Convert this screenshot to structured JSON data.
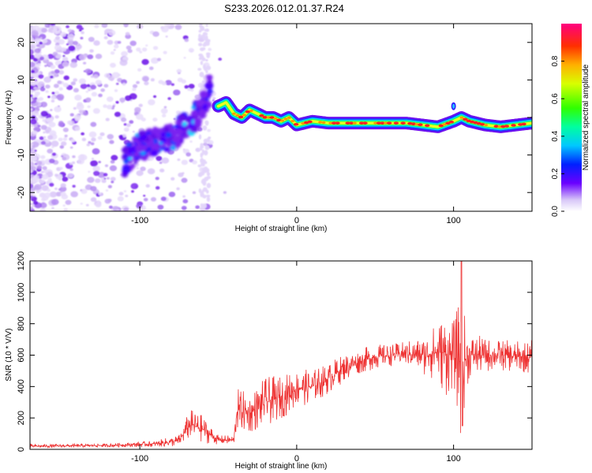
{
  "title": "S233.2026.012.01.37.R24",
  "chart_data": [
    {
      "type": "heatmap",
      "name": "spectrogram",
      "xlabel": "Height of straight line (km)",
      "ylabel": "Frequency (Hz)",
      "xlim": [
        -170,
        150
      ],
      "ylim": [
        -25,
        25
      ],
      "xticks": [
        -100,
        0,
        100
      ],
      "yticks": [
        -20,
        -10,
        0,
        10,
        20
      ],
      "colorbar": {
        "label": "Normalized spectral amplitude",
        "range": [
          0,
          1
        ],
        "ticks": [
          "0.0",
          "0.2",
          "0.4",
          "0.6",
          "0.8"
        ],
        "tick_values": [
          0.0,
          0.2,
          0.4,
          0.6,
          0.8
        ]
      },
      "ridge": {
        "x": [
          -50,
          -45,
          -40,
          -35,
          -30,
          -25,
          -20,
          -15,
          -10,
          -5,
          0,
          10,
          20,
          30,
          40,
          50,
          60,
          70,
          80,
          90,
          100,
          105,
          110,
          120,
          130,
          140,
          150
        ],
        "y": [
          3,
          4,
          1,
          0,
          2,
          1,
          0,
          0,
          -1,
          0,
          -2,
          -1,
          -1.5,
          -1.5,
          -1.5,
          -1.5,
          -1.5,
          -1.5,
          -2,
          -2.5,
          -1,
          0,
          -1,
          -2,
          -2.5,
          -2,
          -1.5
        ]
      },
      "band": {
        "x": [
          -110,
          -100,
          -90,
          -80,
          -70,
          -60,
          -55
        ],
        "y": [
          -12,
          -8,
          -6,
          -5,
          -2,
          2,
          8
        ]
      }
    },
    {
      "type": "line",
      "name": "snr",
      "xlabel": "Height of straight line (km)",
      "ylabel": "SNR (10 * V/V)",
      "xlim": [
        -170,
        150
      ],
      "ylim": [
        0,
        1200
      ],
      "xticks": [
        -100,
        0,
        100
      ],
      "yticks": [
        0,
        200,
        400,
        600,
        800,
        1000,
        1200
      ],
      "color": "#ee3333",
      "envelope": {
        "x": [
          -170,
          -120,
          -90,
          -75,
          -68,
          -60,
          -50,
          -40,
          -38,
          -30,
          -20,
          -10,
          0,
          10,
          20,
          30,
          40,
          50,
          60,
          70,
          80,
          90,
          95,
          100,
          104,
          105,
          106,
          110,
          120,
          130,
          140,
          150
        ],
        "mean": [
          20,
          25,
          35,
          55,
          160,
          130,
          60,
          60,
          250,
          230,
          300,
          330,
          390,
          400,
          450,
          520,
          560,
          590,
          600,
          610,
          600,
          620,
          610,
          600,
          560,
          630,
          560,
          600,
          600,
          600,
          590,
          590
        ],
        "amp": [
          12,
          12,
          20,
          40,
          100,
          90,
          30,
          30,
          140,
          130,
          160,
          140,
          120,
          110,
          100,
          90,
          80,
          80,
          70,
          80,
          120,
          200,
          280,
          220,
          400,
          800,
          350,
          150,
          110,
          100,
          100,
          110
        ]
      }
    }
  ]
}
